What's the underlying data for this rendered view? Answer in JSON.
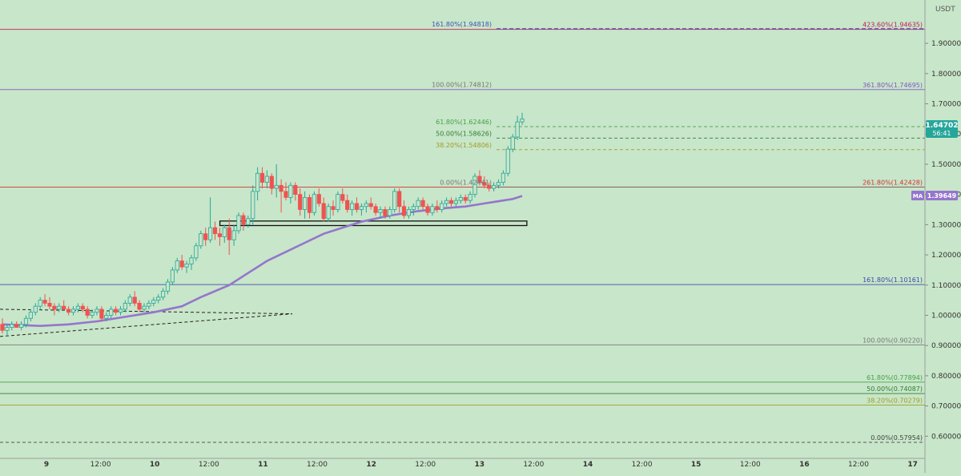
{
  "chart_data": {
    "type": "candlestick",
    "currency_label": "USDT",
    "y_axis": {
      "scale": "linear",
      "range": [
        0.545,
        2.0
      ],
      "ticks": [
        "1.90000",
        "1.80000",
        "1.70000",
        "1.60000",
        "1.50000",
        "1.40000",
        "1.30000",
        "1.20000",
        "1.10000",
        "1.00000",
        "0.90000",
        "0.80000",
        "0.70000",
        "0.60000"
      ],
      "tick_values": [
        1.9,
        1.8,
        1.7,
        1.6,
        1.5,
        1.4,
        1.3,
        1.2,
        1.1,
        1.0,
        0.9,
        0.8,
        0.7,
        0.6
      ]
    },
    "x_axis": {
      "ticks": [
        "9",
        "12:00",
        "10",
        "12:00",
        "11",
        "12:00",
        "12",
        "12:00",
        "13",
        "12:00",
        "14",
        "12:00",
        "15",
        "12:00",
        "16",
        "12:00",
        "17"
      ],
      "bold_ticks": [
        "9",
        "10",
        "11",
        "12",
        "13",
        "14",
        "15",
        "16",
        "17"
      ]
    },
    "price_badge": {
      "value": "1.64702",
      "countdown": "56:41",
      "color": "#26a69a"
    },
    "ma_badge": {
      "label": "MA",
      "value": "1.39649",
      "color": "#9575cd"
    },
    "fib_levels_right": [
      {
        "label": "423.60%(1.94635)",
        "value": 1.94635,
        "color": "#c2185b",
        "dashed": false
      },
      {
        "label": "361.80%(1.74695)",
        "value": 1.74695,
        "color": "#7e57c2",
        "dashed": false
      },
      {
        "label": "261.80%(1.42428)",
        "value": 1.42428,
        "color": "#d32f2f",
        "dashed": false
      },
      {
        "label": "161.80%(1.10161)",
        "value": 1.10161,
        "color": "#3949ab",
        "dashed": false
      },
      {
        "label": "100.00%(0.90220)",
        "value": 0.9022,
        "color": "#757575",
        "dashed": false
      },
      {
        "label": "61.80%(0.77894)",
        "value": 0.77894,
        "color": "#43a047",
        "dashed": false
      },
      {
        "label": "50.00%(0.74087)",
        "value": 0.74087,
        "color": "#2e7d32",
        "dashed": false
      },
      {
        "label": "38.20%(0.70279)",
        "value": 0.70279,
        "color": "#9e9d24",
        "dashed": false
      },
      {
        "label": "0.00%(0.57954)",
        "value": 0.57954,
        "color": "#424242",
        "dashed": true
      }
    ],
    "fib_levels_mid": [
      {
        "label": "161.80%(1.94818)",
        "value": 1.94818,
        "color": "#3f51b5",
        "dashed": true
      },
      {
        "label": "100.00%(1.74812)",
        "value": 1.74812,
        "color": "#757575",
        "dashed": false
      },
      {
        "label": "61.80%(1.62446)",
        "value": 1.62446,
        "color": "#43a047",
        "dashed": true
      },
      {
        "label": "50.00%(1.58626)",
        "value": 1.58626,
        "color": "#2e7d32",
        "dashed": true
      },
      {
        "label": "38.20%(1.54806)",
        "value": 1.54806,
        "color": "#9e9d24",
        "dashed": true
      },
      {
        "label": "0.00%(1.42441)",
        "value": 1.42441,
        "color": "#757575",
        "dashed": false
      }
    ],
    "series_colors": {
      "up": "#26a69a",
      "down": "#ef5350",
      "ma": "#9575cd"
    },
    "candles": [
      [
        0.97,
        0.99,
        0.94,
        0.95
      ],
      [
        0.95,
        0.97,
        0.93,
        0.96
      ],
      [
        0.96,
        0.98,
        0.95,
        0.97
      ],
      [
        0.97,
        0.98,
        0.96,
        0.96
      ],
      [
        0.96,
        0.98,
        0.95,
        0.97
      ],
      [
        0.97,
        1.0,
        0.96,
        0.99
      ],
      [
        0.99,
        1.02,
        0.98,
        1.01
      ],
      [
        1.01,
        1.04,
        1.0,
        1.03
      ],
      [
        1.03,
        1.06,
        1.02,
        1.05
      ],
      [
        1.05,
        1.07,
        1.03,
        1.04
      ],
      [
        1.04,
        1.06,
        1.02,
        1.03
      ],
      [
        1.03,
        1.04,
        1.0,
        1.02
      ],
      [
        1.02,
        1.04,
        1.01,
        1.03
      ],
      [
        1.03,
        1.05,
        1.02,
        1.02
      ],
      [
        1.02,
        1.03,
        1.0,
        1.01
      ],
      [
        1.01,
        1.03,
        1.0,
        1.02
      ],
      [
        1.02,
        1.04,
        1.01,
        1.03
      ],
      [
        1.03,
        1.04,
        1.01,
        1.02
      ],
      [
        1.02,
        1.03,
        0.99,
        1.0
      ],
      [
        1.0,
        1.02,
        0.99,
        1.01
      ],
      [
        1.01,
        1.03,
        1.0,
        1.02
      ],
      [
        1.02,
        1.03,
        0.98,
        0.99
      ],
      [
        0.99,
        1.01,
        0.98,
        1.0
      ],
      [
        1.0,
        1.03,
        0.99,
        1.02
      ],
      [
        1.02,
        1.03,
        1.0,
        1.01
      ],
      [
        1.01,
        1.03,
        1.0,
        1.02
      ],
      [
        1.02,
        1.05,
        1.01,
        1.04
      ],
      [
        1.04,
        1.07,
        1.03,
        1.06
      ],
      [
        1.06,
        1.08,
        1.03,
        1.04
      ],
      [
        1.04,
        1.05,
        1.01,
        1.02
      ],
      [
        1.02,
        1.04,
        1.01,
        1.03
      ],
      [
        1.03,
        1.05,
        1.02,
        1.04
      ],
      [
        1.04,
        1.06,
        1.03,
        1.05
      ],
      [
        1.05,
        1.07,
        1.04,
        1.06
      ],
      [
        1.06,
        1.09,
        1.05,
        1.08
      ],
      [
        1.08,
        1.12,
        1.07,
        1.11
      ],
      [
        1.11,
        1.16,
        1.1,
        1.15
      ],
      [
        1.15,
        1.19,
        1.14,
        1.18
      ],
      [
        1.18,
        1.2,
        1.15,
        1.16
      ],
      [
        1.16,
        1.18,
        1.14,
        1.17
      ],
      [
        1.17,
        1.2,
        1.15,
        1.19
      ],
      [
        1.19,
        1.24,
        1.18,
        1.23
      ],
      [
        1.23,
        1.28,
        1.22,
        1.27
      ],
      [
        1.27,
        1.29,
        1.23,
        1.25
      ],
      [
        1.25,
        1.39,
        1.24,
        1.29
      ],
      [
        1.29,
        1.31,
        1.25,
        1.27
      ],
      [
        1.27,
        1.29,
        1.23,
        1.26
      ],
      [
        1.26,
        1.3,
        1.24,
        1.29
      ],
      [
        1.29,
        1.32,
        1.2,
        1.25
      ],
      [
        1.25,
        1.3,
        1.23,
        1.28
      ],
      [
        1.28,
        1.34,
        1.27,
        1.33
      ],
      [
        1.33,
        1.34,
        1.28,
        1.3
      ],
      [
        1.3,
        1.33,
        1.29,
        1.32
      ],
      [
        1.32,
        1.43,
        1.3,
        1.41
      ],
      [
        1.41,
        1.49,
        1.38,
        1.47
      ],
      [
        1.47,
        1.49,
        1.42,
        1.44
      ],
      [
        1.44,
        1.48,
        1.42,
        1.46
      ],
      [
        1.46,
        1.47,
        1.4,
        1.42
      ],
      [
        1.42,
        1.5,
        1.39,
        1.43
      ],
      [
        1.43,
        1.45,
        1.34,
        1.41
      ],
      [
        1.41,
        1.44,
        1.38,
        1.39
      ],
      [
        1.39,
        1.44,
        1.37,
        1.43
      ],
      [
        1.43,
        1.44,
        1.38,
        1.4
      ],
      [
        1.4,
        1.42,
        1.33,
        1.35
      ],
      [
        1.35,
        1.41,
        1.32,
        1.39
      ],
      [
        1.39,
        1.4,
        1.32,
        1.34
      ],
      [
        1.34,
        1.41,
        1.33,
        1.4
      ],
      [
        1.4,
        1.42,
        1.36,
        1.37
      ],
      [
        1.37,
        1.39,
        1.31,
        1.32
      ],
      [
        1.32,
        1.37,
        1.31,
        1.36
      ],
      [
        1.36,
        1.38,
        1.33,
        1.35
      ],
      [
        1.35,
        1.41,
        1.34,
        1.4
      ],
      [
        1.4,
        1.42,
        1.37,
        1.38
      ],
      [
        1.38,
        1.4,
        1.34,
        1.35
      ],
      [
        1.35,
        1.38,
        1.33,
        1.37
      ],
      [
        1.37,
        1.39,
        1.34,
        1.35
      ],
      [
        1.35,
        1.37,
        1.33,
        1.36
      ],
      [
        1.36,
        1.38,
        1.34,
        1.37
      ],
      [
        1.37,
        1.39,
        1.35,
        1.36
      ],
      [
        1.36,
        1.37,
        1.33,
        1.34
      ],
      [
        1.34,
        1.36,
        1.32,
        1.35
      ],
      [
        1.35,
        1.36,
        1.32,
        1.33
      ],
      [
        1.33,
        1.36,
        1.32,
        1.35
      ],
      [
        1.35,
        1.42,
        1.34,
        1.41
      ],
      [
        1.41,
        1.42,
        1.34,
        1.36
      ],
      [
        1.36,
        1.38,
        1.32,
        1.33
      ],
      [
        1.33,
        1.36,
        1.32,
        1.35
      ],
      [
        1.35,
        1.37,
        1.33,
        1.36
      ],
      [
        1.36,
        1.39,
        1.35,
        1.38
      ],
      [
        1.38,
        1.39,
        1.35,
        1.36
      ],
      [
        1.36,
        1.37,
        1.33,
        1.34
      ],
      [
        1.34,
        1.37,
        1.33,
        1.36
      ],
      [
        1.36,
        1.38,
        1.34,
        1.35
      ],
      [
        1.35,
        1.38,
        1.34,
        1.37
      ],
      [
        1.37,
        1.39,
        1.36,
        1.38
      ],
      [
        1.38,
        1.39,
        1.36,
        1.37
      ],
      [
        1.37,
        1.39,
        1.36,
        1.38
      ],
      [
        1.38,
        1.4,
        1.37,
        1.39
      ],
      [
        1.39,
        1.4,
        1.37,
        1.38
      ],
      [
        1.38,
        1.41,
        1.37,
        1.4
      ],
      [
        1.4,
        1.47,
        1.39,
        1.46
      ],
      [
        1.46,
        1.48,
        1.43,
        1.44
      ],
      [
        1.44,
        1.46,
        1.42,
        1.43
      ],
      [
        1.43,
        1.44,
        1.41,
        1.42
      ],
      [
        1.42,
        1.44,
        1.41,
        1.43
      ],
      [
        1.43,
        1.45,
        1.42,
        1.44
      ],
      [
        1.44,
        1.48,
        1.43,
        1.47
      ],
      [
        1.47,
        1.56,
        1.46,
        1.55
      ],
      [
        1.55,
        1.6,
        1.54,
        1.59
      ],
      [
        1.59,
        1.66,
        1.58,
        1.64
      ],
      [
        1.64,
        1.67,
        1.63,
        1.65
      ]
    ],
    "ma_points": [
      [
        0,
        0.97
      ],
      [
        8,
        0.965
      ],
      [
        14,
        0.97
      ],
      [
        20,
        0.98
      ],
      [
        26,
        0.995
      ],
      [
        32,
        1.01
      ],
      [
        38,
        1.03
      ],
      [
        42,
        1.06
      ],
      [
        48,
        1.1
      ],
      [
        52,
        1.14
      ],
      [
        56,
        1.18
      ],
      [
        60,
        1.21
      ],
      [
        64,
        1.24
      ],
      [
        68,
        1.27
      ],
      [
        72,
        1.29
      ],
      [
        76,
        1.31
      ],
      [
        82,
        1.33
      ],
      [
        88,
        1.345
      ],
      [
        94,
        1.355
      ],
      [
        98,
        1.36
      ],
      [
        102,
        1.37
      ],
      [
        106,
        1.38
      ],
      [
        108,
        1.385
      ],
      [
        110,
        1.395
      ]
    ],
    "box": {
      "x_start": 44,
      "x_end": 111,
      "top": 1.312,
      "bottom": 1.297
    },
    "triangle": {
      "apex_x": 62,
      "upper_start": 1.02,
      "lower_start": 0.93,
      "apex_y": 1.005
    }
  }
}
